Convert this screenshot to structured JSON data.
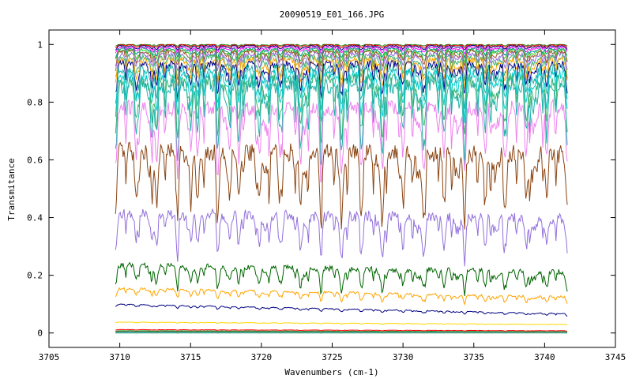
{
  "chart_data": {
    "type": "line",
    "title": "20090519_E01_166.JPG",
    "xlabel": "Wavenumbers (cm-1)",
    "ylabel": "Transmitance",
    "xlim": [
      3705,
      3745
    ],
    "ylim": [
      -0.05,
      1.05
    ],
    "x_range": [
      3709.7,
      3741.6
    ],
    "x_ticks": [
      "3705",
      "3710",
      "3715",
      "3720",
      "3725",
      "3730",
      "3735",
      "3740",
      "3745"
    ],
    "y_ticks": [
      "0",
      "0.2",
      "0.4",
      "0.6",
      "0.8",
      "1"
    ],
    "grid": false,
    "legend": "none",
    "series": [
      {
        "color": "#228b22",
        "base": 1.0,
        "depth": 0.006,
        "drift": 0.0
      },
      {
        "color": "#ff0000",
        "base": 0.998,
        "depth": 0.01,
        "drift": 0.0
      },
      {
        "color": "#000080",
        "base": 0.995,
        "depth": 0.015,
        "drift": 0.0
      },
      {
        "color": "#ff00ff",
        "base": 0.99,
        "depth": 0.02,
        "drift": 0.0
      },
      {
        "color": "#008b8b",
        "base": 0.985,
        "depth": 0.03,
        "drift": 0.0
      },
      {
        "color": "#32cd32",
        "base": 0.98,
        "depth": 0.04,
        "drift": 0.0
      },
      {
        "color": "#a0522d",
        "base": 0.975,
        "depth": 0.05,
        "drift": 0.0
      },
      {
        "color": "#9370db",
        "base": 0.965,
        "depth": 0.06,
        "drift": 0.0
      },
      {
        "color": "#3cb371",
        "base": 0.955,
        "depth": 0.08,
        "drift": 0.0
      },
      {
        "color": "#ffa500",
        "base": 0.945,
        "depth": 0.09,
        "drift": 0.0
      },
      {
        "color": "#00008b",
        "base": 0.93,
        "depth": 0.11,
        "drift": 0.0
      },
      {
        "color": "#20b2aa",
        "base": 0.915,
        "depth": 0.13,
        "drift": 0.0
      },
      {
        "color": "#00ced1",
        "base": 0.895,
        "depth": 0.15,
        "drift": 0.0
      },
      {
        "color": "#3cb371",
        "base": 0.875,
        "depth": 0.2,
        "drift": 0.0
      },
      {
        "color": "#20b2aa",
        "base": 0.86,
        "depth": 0.25,
        "drift": 0.0
      },
      {
        "color": "#ee82ee",
        "base": 0.78,
        "depth": 0.24,
        "drift": 0.0
      },
      {
        "color": "#8b4513",
        "base": 0.63,
        "depth": 0.25,
        "drift": -0.01
      },
      {
        "color": "#9370db",
        "base": 0.415,
        "depth": 0.15,
        "drift": -0.02
      },
      {
        "color": "#006400",
        "base": 0.235,
        "depth": 0.08,
        "drift": -0.025
      },
      {
        "color": "#ffa500",
        "base": 0.155,
        "depth": 0.03,
        "drift": -0.03
      },
      {
        "color": "#000080",
        "base": 0.1,
        "depth": 0.01,
        "drift": -0.033
      },
      {
        "color": "#ffd700",
        "base": 0.038,
        "depth": 0.003,
        "drift": -0.008
      },
      {
        "color": "#ff0000",
        "base": 0.012,
        "depth": 0.002,
        "drift": -0.004
      },
      {
        "color": "#228b22",
        "base": 0.008,
        "depth": 0.002,
        "drift": -0.003
      },
      {
        "color": "#8b4513",
        "base": 0.005,
        "depth": 0.001,
        "drift": -0.002
      },
      {
        "color": "#00ced1",
        "base": 0.003,
        "depth": 0.001,
        "drift": -0.001
      },
      {
        "color": "#9370db",
        "base": 0.001,
        "depth": 0.001,
        "drift": 0.0
      },
      {
        "color": "#3cb371",
        "base": 0.0,
        "depth": 0.0,
        "drift": 0.0
      }
    ]
  }
}
